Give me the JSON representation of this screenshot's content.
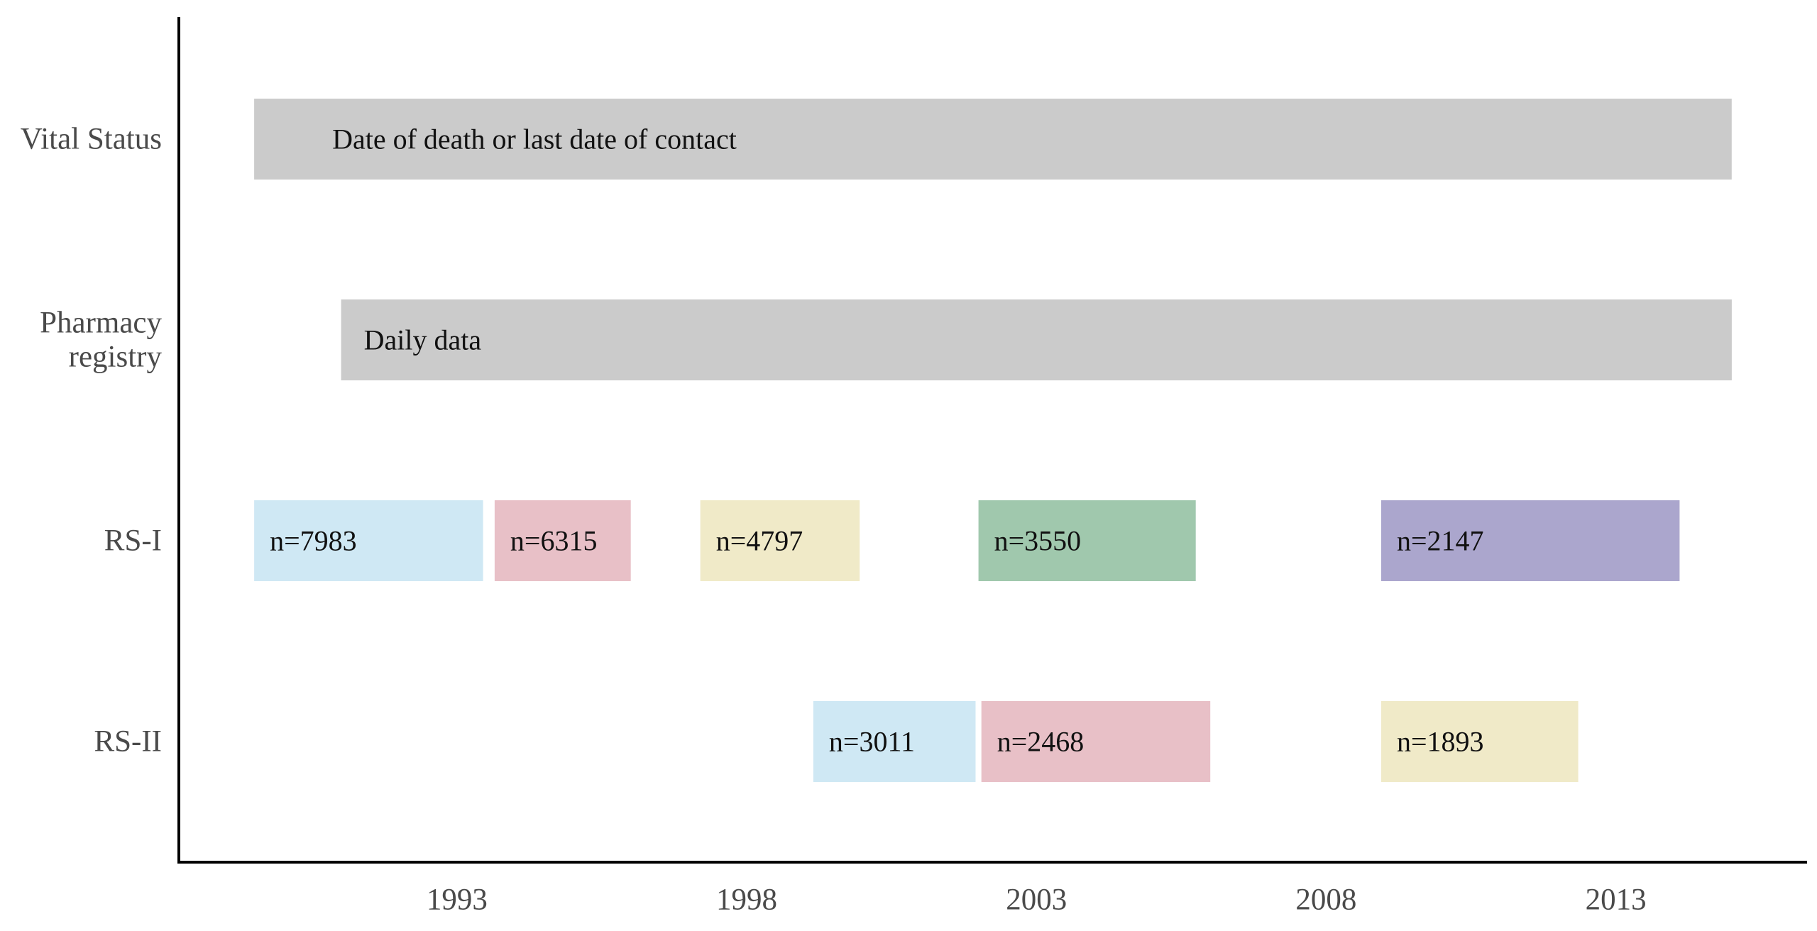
{
  "chart_data": {
    "type": "bar",
    "title": "",
    "xlabel": "",
    "ylabel": "",
    "x_axis": {
      "ticks": [
        1993,
        1998,
        2003,
        2008,
        2013
      ],
      "range": [
        1988.2,
        2016.3
      ]
    },
    "grid": false,
    "rows": [
      "Vital Status",
      "Pharmacy registry",
      "RS-I",
      "RS-II"
    ],
    "row_label_lines": {
      "Vital Status": [
        "Vital Status"
      ],
      "Pharmacy registry": [
        "Pharmacy",
        "registry"
      ],
      "RS-I": [
        "RS-I"
      ],
      "RS-II": [
        "RS-II"
      ]
    },
    "bars": [
      {
        "row": "Vital Status",
        "start": 1989.5,
        "end": 2015.0,
        "label": "Date of death or last date of contact",
        "color": "#cbcbcb"
      },
      {
        "row": "Pharmacy registry",
        "start": 1991.0,
        "end": 2015.0,
        "label": "Daily data",
        "color": "#cbcbcb"
      },
      {
        "row": "RS-I",
        "start": 1989.5,
        "end": 1993.45,
        "label": "n=7983",
        "color": "#cfe8f4"
      },
      {
        "row": "RS-I",
        "start": 1993.65,
        "end": 1996.0,
        "label": "n=6315",
        "color": "#e8c0c7"
      },
      {
        "row": "RS-I",
        "start": 1997.2,
        "end": 1999.95,
        "label": "n=4797",
        "color": "#f0eac8"
      },
      {
        "row": "RS-I",
        "start": 2002.0,
        "end": 2005.75,
        "label": "n=3550",
        "color": "#a0c8ad"
      },
      {
        "row": "RS-I",
        "start": 2008.95,
        "end": 2014.1,
        "label": "n=2147",
        "color": "#aba6cd"
      },
      {
        "row": "RS-II",
        "start": 1999.15,
        "end": 2001.95,
        "label": "n=3011",
        "color": "#cfe8f4"
      },
      {
        "row": "RS-II",
        "start": 2002.05,
        "end": 2006.0,
        "label": "n=2468",
        "color": "#e8c0c7"
      },
      {
        "row": "RS-II",
        "start": 2008.95,
        "end": 2012.35,
        "label": "n=1893",
        "color": "#f0eac8"
      }
    ]
  }
}
